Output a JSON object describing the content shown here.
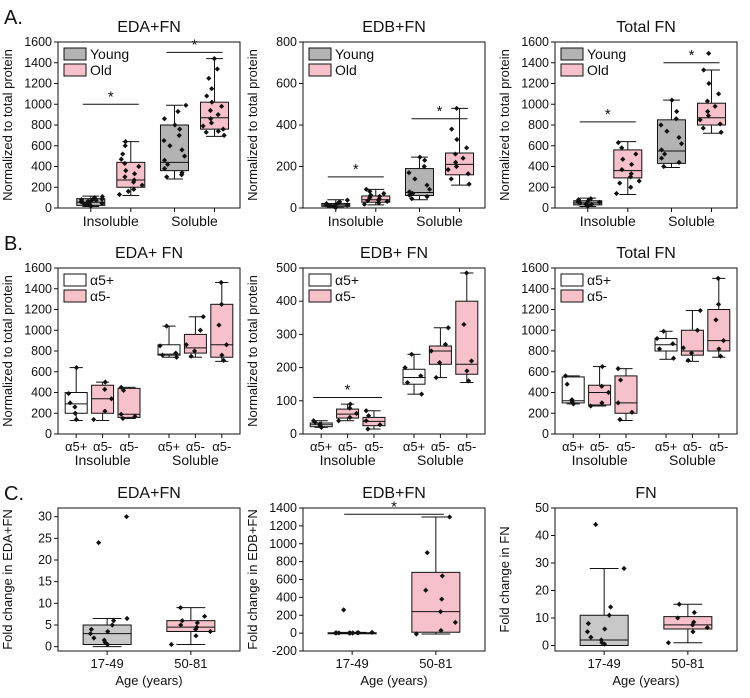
{
  "figure": {
    "panel_labels": [
      "A.",
      "B.",
      "C."
    ],
    "colors": {
      "young": "#b3b3b3",
      "old": "#f7c1cb",
      "a5pos": "#ffffff",
      "a5neg": "#f7c1cb",
      "c_left": "#c8c8c8",
      "c_right": "#f7c1cb",
      "stroke": "#111111"
    }
  },
  "chart_data": [
    {
      "id": "A1",
      "type": "box",
      "title": "EDA+FN",
      "ylabel": "Normalized to total protein",
      "ylim": [
        0,
        1600
      ],
      "yticks": [
        0,
        200,
        400,
        600,
        800,
        1000,
        1200,
        1400,
        1600
      ],
      "legend": [
        {
          "label": "Young",
          "color": "#b3b3b3"
        },
        {
          "label": "Old",
          "color": "#f7c1cb"
        }
      ],
      "groups": [
        "Insoluble",
        "Soluble"
      ],
      "box_labels": [],
      "boxes": [
        {
          "color": "#b3b3b3",
          "whisker_low": 15,
          "q1": 25,
          "median": 55,
          "q3": 90,
          "whisker_high": 115,
          "points": [
            20,
            30,
            40,
            50,
            60,
            70,
            80,
            90,
            100,
            110,
            35,
            45,
            65,
            75,
            85
          ]
        },
        {
          "color": "#f7c1cb",
          "whisker_low": 120,
          "q1": 200,
          "median": 270,
          "q3": 440,
          "whisker_high": 640,
          "points": [
            130,
            180,
            220,
            250,
            270,
            300,
            330,
            360,
            400,
            430,
            470,
            520,
            600,
            640,
            160
          ]
        },
        {
          "color": "#b3b3b3",
          "whisker_low": 280,
          "q1": 360,
          "median": 440,
          "q3": 800,
          "whisker_high": 990,
          "points": [
            300,
            340,
            380,
            420,
            460,
            500,
            560,
            600,
            650,
            700,
            760,
            800,
            860,
            930,
            990,
            320
          ]
        },
        {
          "color": "#f7c1cb",
          "whisker_low": 690,
          "q1": 760,
          "median": 870,
          "q3": 1020,
          "whisker_high": 1440,
          "points": [
            700,
            730,
            760,
            790,
            820,
            860,
            900,
            940,
            980,
            1020,
            1080,
            1150,
            1250,
            1340,
            1440,
            740
          ]
        }
      ],
      "sig": [
        {
          "from": 0,
          "to": 1,
          "y": 1000,
          "label": "*"
        },
        {
          "from": 2,
          "to": 3,
          "y": 1500,
          "label": "*"
        }
      ]
    },
    {
      "id": "A2",
      "type": "box",
      "title": "EDB+FN",
      "ylabel": "Normalized to total protein",
      "ylim": [
        0,
        800
      ],
      "yticks": [
        0,
        200,
        400,
        600,
        800
      ],
      "legend": [
        {
          "label": "Young",
          "color": "#b3b3b3"
        },
        {
          "label": "Old",
          "color": "#f7c1cb"
        }
      ],
      "groups": [
        "Insoluble",
        "Soluble"
      ],
      "box_labels": [],
      "boxes": [
        {
          "color": "#b3b3b3",
          "whisker_low": 2,
          "q1": 8,
          "median": 15,
          "q3": 22,
          "whisker_high": 40,
          "points": [
            3,
            6,
            9,
            12,
            15,
            18,
            21,
            25,
            30,
            38,
            10,
            14
          ]
        },
        {
          "color": "#f7c1cb",
          "whisker_low": 15,
          "q1": 28,
          "median": 40,
          "q3": 58,
          "whisker_high": 90,
          "points": [
            18,
            25,
            32,
            38,
            44,
            50,
            56,
            62,
            70,
            80,
            90,
            35
          ]
        },
        {
          "color": "#b3b3b3",
          "whisker_low": 40,
          "q1": 60,
          "median": 75,
          "q3": 190,
          "whisker_high": 245,
          "points": [
            45,
            55,
            62,
            70,
            78,
            90,
            110,
            140,
            170,
            200,
            230,
            245
          ]
        },
        {
          "color": "#f7c1cb",
          "whisker_low": 110,
          "q1": 160,
          "median": 210,
          "q3": 265,
          "whisker_high": 480,
          "points": [
            115,
            140,
            165,
            185,
            200,
            220,
            240,
            260,
            290,
            330,
            380,
            480
          ]
        }
      ],
      "sig": [
        {
          "from": 0,
          "to": 1,
          "y": 150,
          "label": "*"
        },
        {
          "from": 2,
          "to": 3,
          "y": 430,
          "label": "*"
        }
      ]
    },
    {
      "id": "A3",
      "type": "box",
      "title": "Total FN",
      "ylabel": "Normalized to total protein",
      "ylim": [
        0,
        1600
      ],
      "yticks": [
        0,
        200,
        400,
        600,
        800,
        1000,
        1200,
        1400,
        1600
      ],
      "legend": [
        {
          "label": "Young",
          "color": "#b3b3b3"
        },
        {
          "label": "Old",
          "color": "#f7c1cb"
        }
      ],
      "groups": [
        "Insoluble",
        "Soluble"
      ],
      "box_labels": [],
      "boxes": [
        {
          "color": "#b3b3b3",
          "whisker_low": 15,
          "q1": 30,
          "median": 50,
          "q3": 70,
          "whisker_high": 95,
          "points": [
            20,
            30,
            40,
            50,
            60,
            70,
            80,
            90,
            35,
            55
          ]
        },
        {
          "color": "#f7c1cb",
          "whisker_low": 130,
          "q1": 290,
          "median": 360,
          "q3": 560,
          "whisker_high": 640,
          "points": [
            140,
            200,
            260,
            300,
            330,
            370,
            420,
            470,
            520,
            580,
            630,
            240
          ]
        },
        {
          "color": "#b3b3b3",
          "whisker_low": 390,
          "q1": 430,
          "median": 550,
          "q3": 850,
          "whisker_high": 1040,
          "points": [
            400,
            440,
            480,
            520,
            560,
            620,
            680,
            740,
            800,
            860,
            930,
            1040
          ]
        },
        {
          "color": "#f7c1cb",
          "whisker_low": 720,
          "q1": 800,
          "median": 870,
          "q3": 1010,
          "whisker_high": 1330,
          "points": [
            730,
            770,
            810,
            850,
            890,
            930,
            980,
            1030,
            1100,
            1200,
            1330,
            1490
          ]
        }
      ],
      "sig": [
        {
          "from": 0,
          "to": 1,
          "y": 830,
          "label": "*"
        },
        {
          "from": 2,
          "to": 3,
          "y": 1400,
          "label": "*"
        }
      ]
    },
    {
      "id": "B1",
      "type": "box",
      "title": "EDA+ FN",
      "ylabel": "Normalized to total protein",
      "ylim": [
        0,
        1600
      ],
      "yticks": [
        0,
        200,
        400,
        600,
        800,
        1000,
        1200,
        1400,
        1600
      ],
      "legend": [
        {
          "label": "α5+",
          "color": "#ffffff"
        },
        {
          "label": "α5-",
          "color": "#f7c1cb"
        }
      ],
      "groups": [
        "Insoluble",
        "Soluble"
      ],
      "box_labels": [
        "α5+",
        "α5-",
        "α5-",
        "α5+",
        "α5-",
        "α5-"
      ],
      "boxes": [
        {
          "color": "#ffffff",
          "whisker_low": 130,
          "q1": 200,
          "median": 290,
          "q3": 400,
          "whisker_high": 640,
          "points": [
            140,
            200,
            260,
            300,
            390,
            640
          ]
        },
        {
          "color": "#f7c1cb",
          "whisker_low": 130,
          "q1": 200,
          "median": 340,
          "q3": 470,
          "whisker_high": 500,
          "points": [
            140,
            220,
            340,
            430,
            500
          ]
        },
        {
          "color": "#f7c1cb",
          "whisker_low": 150,
          "q1": 160,
          "median": 190,
          "q3": 440,
          "whisker_high": 450,
          "points": [
            150,
            170,
            190,
            420,
            450
          ]
        },
        {
          "color": "#ffffff",
          "whisker_low": 740,
          "q1": 760,
          "median": 770,
          "q3": 860,
          "whisker_high": 1040,
          "points": [
            740,
            760,
            780,
            850,
            1040
          ]
        },
        {
          "color": "#f7c1cb",
          "whisker_low": 740,
          "q1": 780,
          "median": 830,
          "q3": 960,
          "whisker_high": 1130,
          "points": [
            750,
            800,
            860,
            1000,
            1130
          ]
        },
        {
          "color": "#f7c1cb",
          "whisker_low": 700,
          "q1": 740,
          "median": 860,
          "q3": 1250,
          "whisker_high": 1460,
          "points": [
            710,
            760,
            860,
            1050,
            1250,
            1460
          ]
        }
      ],
      "sig": []
    },
    {
      "id": "B2",
      "type": "box",
      "title": "EDB+ FN",
      "ylabel": "Normalized to total protein",
      "ylim": [
        0,
        500
      ],
      "yticks": [
        0,
        100,
        200,
        300,
        400,
        500
      ],
      "legend": [
        {
          "label": "α5+",
          "color": "#ffffff"
        },
        {
          "label": "α5-",
          "color": "#f7c1cb"
        }
      ],
      "groups": [
        "Insoluble",
        "Soluble"
      ],
      "box_labels": [
        "α5+",
        "α5-",
        "α5-",
        "α5+",
        "α5-",
        "α5-"
      ],
      "boxes": [
        {
          "color": "#ffffff",
          "whisker_low": 20,
          "q1": 22,
          "median": 28,
          "q3": 33,
          "whisker_high": 40,
          "points": [
            20,
            25,
            30,
            35,
            40
          ]
        },
        {
          "color": "#f7c1cb",
          "whisker_low": 40,
          "q1": 48,
          "median": 60,
          "q3": 75,
          "whisker_high": 90,
          "points": [
            40,
            50,
            62,
            78,
            90
          ]
        },
        {
          "color": "#f7c1cb",
          "whisker_low": 15,
          "q1": 25,
          "median": 38,
          "q3": 50,
          "whisker_high": 70,
          "points": [
            15,
            28,
            40,
            55,
            70
          ]
        },
        {
          "color": "#ffffff",
          "whisker_low": 120,
          "q1": 150,
          "median": 170,
          "q3": 195,
          "whisker_high": 240,
          "points": [
            120,
            155,
            175,
            200,
            240
          ]
        },
        {
          "color": "#f7c1cb",
          "whisker_low": 170,
          "q1": 210,
          "median": 250,
          "q3": 265,
          "whisker_high": 320,
          "points": [
            170,
            215,
            250,
            270,
            320
          ]
        },
        {
          "color": "#f7c1cb",
          "whisker_low": 155,
          "q1": 180,
          "median": 210,
          "q3": 400,
          "whisker_high": 485,
          "points": [
            160,
            190,
            220,
            330,
            485
          ]
        }
      ],
      "sig": [
        {
          "from": 0,
          "to": 2,
          "y": 110,
          "label": "*"
        }
      ]
    },
    {
      "id": "B3",
      "type": "box",
      "title": "Total FN",
      "ylabel": "",
      "ylim": [
        0,
        1600
      ],
      "yticks": [
        0,
        200,
        400,
        600,
        800,
        1000,
        1200,
        1400,
        1600
      ],
      "legend": [
        {
          "label": "α5+",
          "color": "#ffffff"
        },
        {
          "label": "α5-",
          "color": "#f7c1cb"
        }
      ],
      "groups": [
        "Insoluble",
        "Soluble"
      ],
      "box_labels": [
        "α5+",
        "α5-",
        "α5-",
        "α5+",
        "α5-",
        "α5-"
      ],
      "boxes": [
        {
          "color": "#ffffff",
          "whisker_low": 290,
          "q1": 300,
          "median": 320,
          "q3": 550,
          "whisker_high": 560,
          "points": [
            290,
            310,
            330,
            480,
            560
          ]
        },
        {
          "color": "#f7c1cb",
          "whisker_low": 270,
          "q1": 280,
          "median": 400,
          "q3": 470,
          "whisker_high": 650,
          "points": [
            270,
            300,
            400,
            460,
            650
          ]
        },
        {
          "color": "#f7c1cb",
          "whisker_low": 130,
          "q1": 200,
          "median": 300,
          "q3": 560,
          "whisker_high": 630,
          "points": [
            140,
            210,
            300,
            520,
            630
          ]
        },
        {
          "color": "#ffffff",
          "whisker_low": 720,
          "q1": 800,
          "median": 860,
          "q3": 920,
          "whisker_high": 990,
          "points": [
            730,
            820,
            870,
            920,
            990
          ]
        },
        {
          "color": "#f7c1cb",
          "whisker_low": 700,
          "q1": 760,
          "median": 800,
          "q3": 1000,
          "whisker_high": 1190,
          "points": [
            710,
            780,
            830,
            1000,
            1190
          ]
        },
        {
          "color": "#f7c1cb",
          "whisker_low": 740,
          "q1": 800,
          "median": 900,
          "q3": 1200,
          "whisker_high": 1500,
          "points": [
            750,
            820,
            900,
            1100,
            1250,
            1500
          ]
        }
      ],
      "sig": []
    },
    {
      "id": "C1",
      "type": "box",
      "title": "EDA+FN",
      "ylabel": "Fold change in EDA+FN",
      "xlabel": "Age (years)",
      "ylim": [
        -1,
        32
      ],
      "yticks": [
        0,
        5,
        10,
        15,
        20,
        25,
        30
      ],
      "legend": [],
      "groups": [],
      "box_labels": [
        "17-49",
        "50-81"
      ],
      "boxes": [
        {
          "color": "#c8c8c8",
          "whisker_low": 0,
          "q1": 0.5,
          "median": 3,
          "q3": 5,
          "whisker_high": 6.5,
          "points": [
            0.5,
            1,
            1.5,
            2,
            3,
            3.5,
            4,
            5,
            6,
            6.5,
            24,
            30
          ]
        },
        {
          "color": "#f7c1cb",
          "whisker_low": 0.5,
          "q1": 3.5,
          "median": 4.5,
          "q3": 6,
          "whisker_high": 9,
          "points": [
            0.5,
            2.5,
            3.5,
            4,
            4.5,
            5,
            5.5,
            6,
            7,
            9
          ]
        }
      ],
      "sig": []
    },
    {
      "id": "C2",
      "type": "box",
      "title": "EDB+FN",
      "ylabel": "Fold change in EDB+FN",
      "xlabel": "Age (years)",
      "ylim": [
        -200,
        1400
      ],
      "yticks": [
        -200,
        0,
        200,
        400,
        600,
        800,
        1000,
        1200,
        1400
      ],
      "legend": [],
      "groups": [],
      "box_labels": [
        "17-49",
        "50-81"
      ],
      "boxes": [
        {
          "color": "#c8c8c8",
          "whisker_low": 0,
          "q1": 0,
          "median": 2,
          "q3": 4,
          "whisker_high": 8,
          "points": [
            0,
            1,
            1,
            2,
            2,
            3,
            3,
            4,
            5,
            8,
            260
          ]
        },
        {
          "color": "#f7c1cb",
          "whisker_low": -10,
          "q1": 10,
          "median": 240,
          "q3": 680,
          "whisker_high": 1300,
          "points": [
            -10,
            30,
            120,
            240,
            380,
            480,
            640,
            900,
            1300
          ]
        }
      ],
      "sig": [
        {
          "from": 0,
          "to": 1,
          "y": 1330,
          "label": "*"
        }
      ]
    },
    {
      "id": "C3",
      "type": "box",
      "title": "FN",
      "ylabel": "Fold change in FN",
      "xlabel": "Age (years)",
      "ylim": [
        -2,
        50
      ],
      "yticks": [
        0,
        10,
        20,
        30,
        40,
        50
      ],
      "legend": [],
      "groups": [],
      "box_labels": [
        "17-49",
        "50-81"
      ],
      "boxes": [
        {
          "color": "#c8c8c8",
          "whisker_low": 0,
          "q1": 0,
          "median": 2,
          "q3": 11,
          "whisker_high": 28,
          "points": [
            0.5,
            1,
            2,
            3,
            5,
            6,
            8,
            11,
            14,
            28,
            44
          ]
        },
        {
          "color": "#f7c1cb",
          "whisker_low": 1,
          "q1": 6,
          "median": 7.5,
          "q3": 10.5,
          "whisker_high": 15,
          "points": [
            1,
            5,
            6.5,
            7.5,
            8.5,
            10,
            12,
            15
          ]
        }
      ],
      "sig": []
    }
  ]
}
